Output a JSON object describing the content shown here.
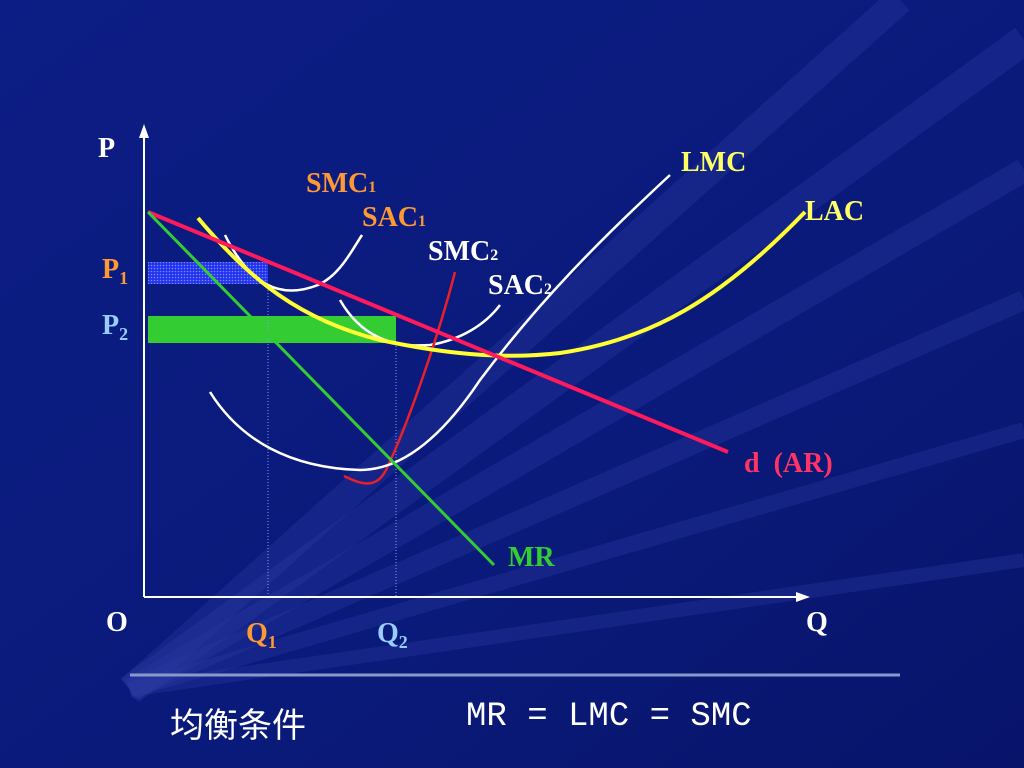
{
  "labels": {
    "p_axis": "P",
    "q_axis": "Q",
    "origin": "O",
    "smc1": {
      "main": "SMC",
      "sub": "1"
    },
    "sac1": {
      "main": "SAC",
      "sub": "1"
    },
    "smc2": {
      "main": "SMC",
      "sub": "2"
    },
    "sac2": {
      "main": "SAC",
      "sub": "2"
    },
    "lmc": "LMC",
    "lac": "LAC",
    "demand": "d  (AR)",
    "mr": "MR",
    "p1": {
      "main": "P",
      "sub": "1"
    },
    "p2": {
      "main": "P",
      "sub": "2"
    },
    "q1": {
      "main": "Q",
      "sub": "1"
    },
    "q2": {
      "main": "Q",
      "sub": "2"
    }
  },
  "footer": {
    "condition_label": "均衡条件",
    "equation": "MR = LMC = SMC"
  },
  "colors": {
    "background": "#0a1a7a",
    "axis": "#ffffff",
    "short_run_curves": "#ffffff",
    "smc2_curve": "#e8202a",
    "lac_curve": "#ffff33",
    "demand_curve": "#ff1a5c",
    "mr_curve": "#33cc33",
    "profit_rect_1": "#3344ff",
    "profit_rect_2": "#33cc33",
    "label_orange": "#ff9933",
    "label_yellow": "#ffff66",
    "label_lightblue": "#99ccff",
    "label_pink": "#ff3366",
    "label_green": "#33cc33",
    "label_white": "#ffffff"
  }
}
